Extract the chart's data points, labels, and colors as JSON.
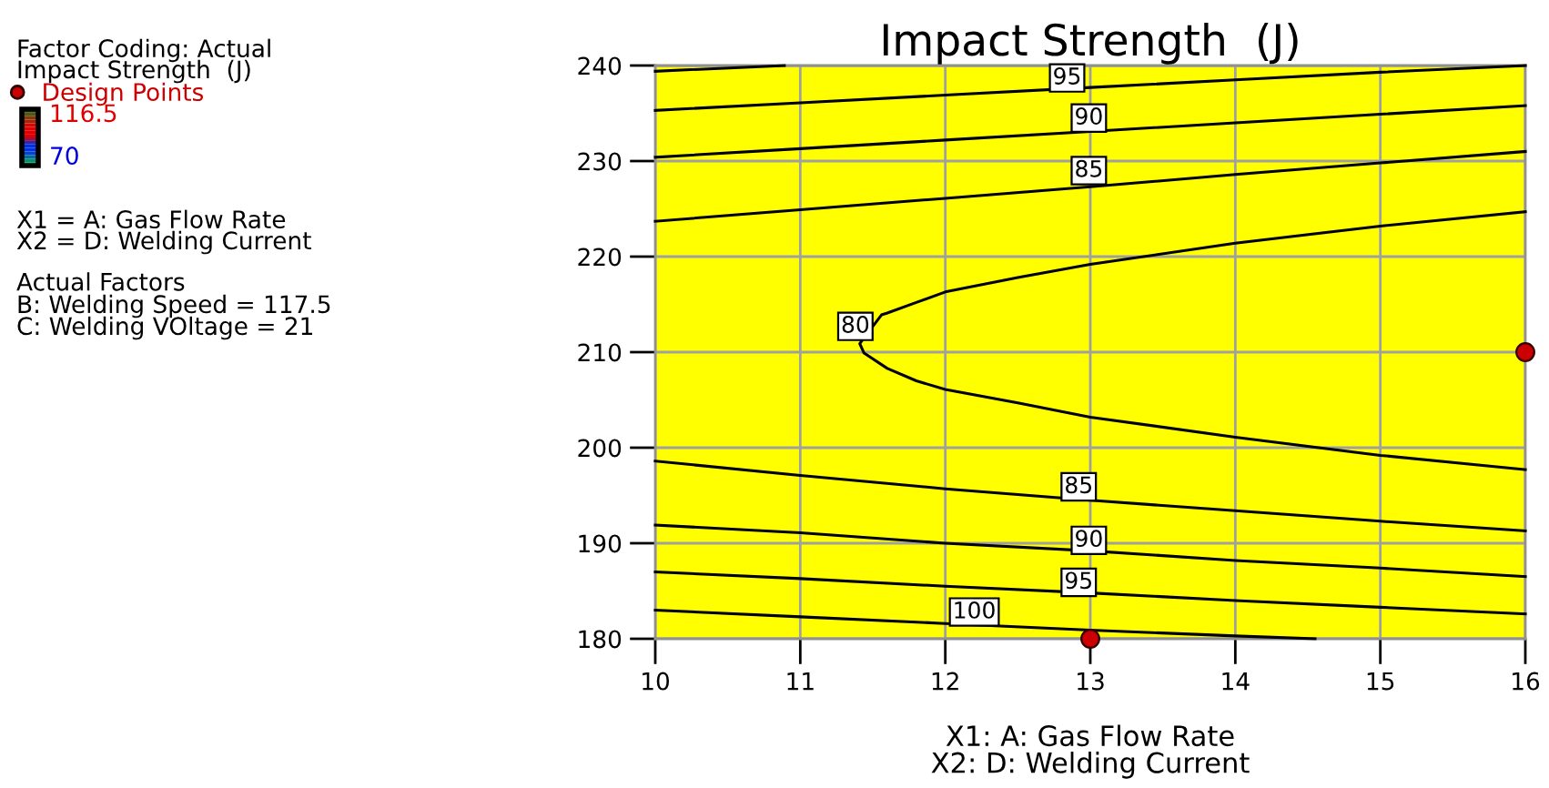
{
  "chart_data": {
    "type": "line",
    "title": "Impact Strength  (J)",
    "xlabel": "X1: A: Gas Flow Rate\nX2: D: Welding Current",
    "xlim": [
      10,
      16
    ],
    "ylim": [
      180,
      240
    ],
    "xticks": [
      10,
      11,
      12,
      13,
      14,
      15,
      16
    ],
    "yticks": [
      180,
      190,
      200,
      210,
      220,
      230,
      240
    ],
    "grid": true,
    "legend": "top left",
    "series": [
      {
        "color": "#000000",
        "x": [
          10,
          10.89
        ],
        "values": [
          239.4,
          240.0
        ]
      },
      {
        "color": "#000000",
        "x": [
          10,
          11,
          12,
          13,
          14,
          15,
          16
        ],
        "values": [
          235.3,
          236.1,
          236.9,
          237.7,
          238.5,
          239.3,
          240.0
        ]
      },
      {
        "color": "#000000",
        "x": [
          10,
          11,
          12,
          13,
          14,
          15,
          16
        ],
        "values": [
          230.4,
          231.3,
          232.2,
          233.1,
          234.0,
          234.9,
          235.8
        ]
      },
      {
        "color": "#000000",
        "x": [
          10,
          11,
          12,
          13,
          14,
          15,
          16
        ],
        "values": [
          223.7,
          224.9,
          226.1,
          227.3,
          228.6,
          229.8,
          231.0
        ]
      },
      {
        "color": "#000000",
        "x": [
          16,
          15,
          14,
          13,
          12.5,
          12,
          11.8,
          11.6,
          11.56,
          11.41,
          11.44,
          11.6,
          11.8,
          12,
          12.5,
          13,
          14,
          15,
          16
        ],
        "values": [
          224.7,
          223.2,
          221.4,
          219.2,
          217.8,
          216.3,
          215.2,
          214.1,
          213.9,
          210.9,
          209.9,
          208.3,
          207.0,
          206.1,
          204.7,
          203.2,
          201.1,
          199.2,
          197.7
        ]
      },
      {
        "color": "#000000",
        "x": [
          10,
          11,
          12,
          13,
          14,
          15,
          16
        ],
        "values": [
          198.6,
          197.1,
          195.7,
          194.5,
          193.4,
          192.3,
          191.3
        ]
      },
      {
        "color": "#000000",
        "x": [
          10,
          11,
          12,
          13,
          14,
          15,
          16
        ],
        "values": [
          191.9,
          191.1,
          190.0,
          189.2,
          188.2,
          187.4,
          186.5
        ]
      },
      {
        "color": "#000000",
        "x": [
          10,
          11,
          12,
          13,
          14,
          15,
          16
        ],
        "values": [
          187.0,
          186.3,
          185.5,
          184.8,
          184.0,
          183.3,
          182.6
        ]
      },
      {
        "color": "#000000",
        "x": [
          10,
          11,
          12,
          13,
          14,
          14.55
        ],
        "values": [
          183.0,
          182.3,
          181.6,
          180.9,
          180.3,
          180.0
        ]
      },
      {
        "type": "scatter",
        "marker": "circle",
        "name": "Design Points",
        "color": "#cc0000",
        "x": [
          13,
          16
        ],
        "values": [
          180,
          210
        ]
      }
    ],
    "annotations": [
      "Factor Coding: Actual",
      "Impact Strength  (J)",
      "116.5",
      "70",
      "X1 = A: Gas Flow Rate",
      "X2 = D: Welding Current",
      "Actual Factors",
      "B: Welding Speed = 117.5",
      "C: Welding VOltage = 21",
      {
        "text": "95",
        "x": 12.84,
        "y": 238.7
      },
      {
        "text": "90",
        "x": 12.99,
        "y": 234.5
      },
      {
        "text": "85",
        "x": 12.99,
        "y": 229.0
      },
      {
        "text": "80",
        "x": 11.38,
        "y": 212.7
      },
      {
        "text": "85",
        "x": 12.92,
        "y": 195.9
      },
      {
        "text": "90",
        "x": 12.99,
        "y": 190.3
      },
      {
        "text": "95",
        "x": 12.92,
        "y": 185.9
      },
      {
        "text": "100",
        "x": 12.2,
        "y": 182.8
      }
    ]
  }
}
